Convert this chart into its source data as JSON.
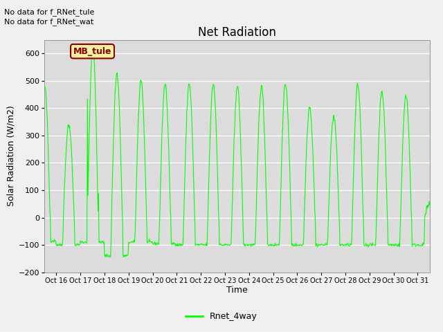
{
  "title": "Net Radiation",
  "xlabel": "Time",
  "ylabel": "Solar Radiation (W/m2)",
  "text_top_left_line1": "No data for f_RNet_tule",
  "text_top_left_line2": "No data for f_RNet_wat",
  "legend_label": "Rnet_4way",
  "legend_color": "#00ff00",
  "line_color": "#00ff00",
  "background_color": "#dcdcdc",
  "fig_background": "#f0f0f0",
  "ylim": [
    -200,
    650
  ],
  "yticks": [
    -200,
    -100,
    0,
    100,
    200,
    300,
    400,
    500,
    600
  ],
  "xlim": [
    15.5,
    31.5
  ],
  "xtick_labels": [
    "Oct 16",
    "Oct 17",
    "Oct 18",
    "Oct 19",
    "Oct 20",
    "Oct 21",
    "Oct 22",
    "Oct 23",
    "Oct 24",
    "Oct 25",
    "Oct 26",
    "Oct 27",
    "Oct 28",
    "Oct 29",
    "Oct 30",
    "Oct 31"
  ],
  "xtick_positions": [
    16,
    17,
    18,
    19,
    20,
    21,
    22,
    23,
    24,
    25,
    26,
    27,
    28,
    29,
    30,
    31
  ],
  "title_fontsize": 12,
  "axis_label_fontsize": 9,
  "tick_fontsize": 8,
  "annot_fontsize": 8,
  "text_fontsize": 8
}
